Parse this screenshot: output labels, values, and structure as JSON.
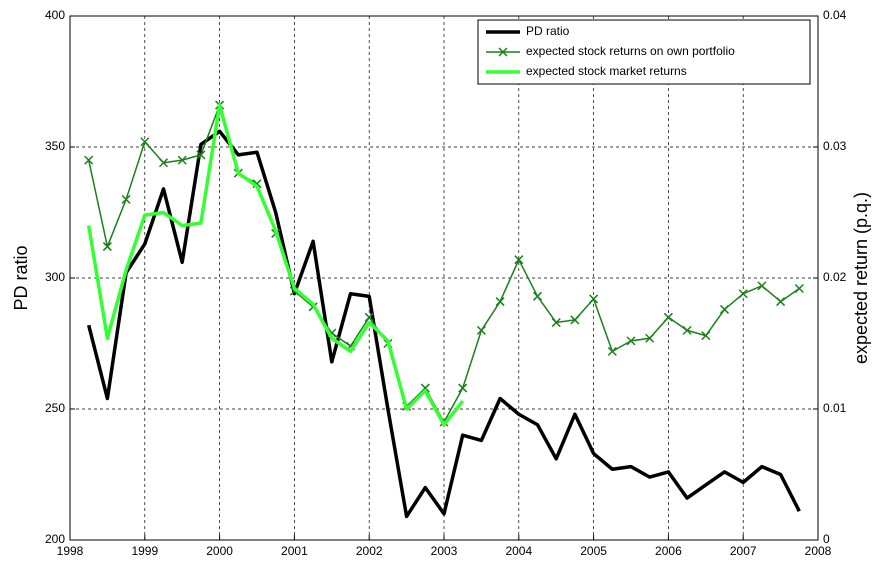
{
  "chart_data": {
    "type": "line",
    "x": [
      1998.25,
      1998.5,
      1998.75,
      1999,
      1999.25,
      1999.5,
      1999.75,
      2000,
      2000.25,
      2000.5,
      2000.75,
      2001,
      2001.25,
      2001.5,
      2001.75,
      2002,
      2002.25,
      2002.5,
      2002.75,
      2003,
      2003.25,
      2003.5,
      2003.75,
      2004,
      2004.25,
      2004.5,
      2004.75,
      2005,
      2005.25,
      2005.5,
      2005.75,
      2006,
      2006.25,
      2006.5,
      2006.75,
      2007,
      2007.25,
      2007.5,
      2007.75
    ],
    "series": [
      {
        "name": "PD ratio",
        "color": "#000000",
        "values": [
          282,
          254,
          302,
          313,
          334,
          306,
          351,
          356,
          347,
          348,
          325,
          294,
          314,
          268,
          294,
          293,
          250,
          209,
          220,
          210,
          240,
          238,
          254,
          248,
          244,
          231,
          248,
          233,
          227,
          228,
          224,
          226,
          216,
          221,
          226,
          222,
          228,
          225,
          211
        ]
      },
      {
        "name": "expected stock returns on own portfolio",
        "color": "#1a801a",
        "axis": "y2",
        "marker": "x",
        "values": [
          0.029,
          0.0224,
          0.026,
          0.0304,
          0.0288,
          0.029,
          0.0294,
          0.0332,
          0.028,
          0.0272,
          0.0234,
          0.019,
          0.0178,
          0.0158,
          0.0148,
          0.017,
          0.015,
          0.0102,
          0.0116,
          0.009,
          0.0116,
          0.016,
          0.0182,
          0.0214,
          0.0186,
          0.0166,
          0.0168,
          0.0184,
          0.0144,
          0.0152,
          0.0154,
          0.017,
          0.016,
          0.0156,
          0.0176,
          0.0188,
          0.0194,
          0.0182,
          0.0192
        ]
      },
      {
        "name": "expected stock market returns",
        "color": "#33ff33",
        "axis": "y2",
        "values": [
          0.024,
          0.0154,
          0.0206,
          0.0248,
          0.025,
          0.024,
          0.0242,
          0.0332,
          0.028,
          0.027,
          0.0236,
          0.0192,
          0.018,
          0.0154,
          0.0144,
          0.0166,
          0.0152,
          0.01,
          0.0114,
          0.0088,
          0.0106,
          null,
          null,
          null,
          null,
          null,
          null,
          null,
          null,
          null,
          null,
          null,
          null,
          null,
          null,
          null,
          null,
          null,
          null
        ]
      }
    ],
    "ylabel": "PD ratio",
    "y2label": "expected return (p.q.)",
    "xlim": [
      1998,
      2008
    ],
    "xticks": [
      1998,
      1999,
      2000,
      2001,
      2002,
      2003,
      2004,
      2005,
      2006,
      2007,
      2008
    ],
    "ylim": [
      200,
      400
    ],
    "yticks": [
      200,
      250,
      300,
      350,
      400
    ],
    "y2lim": [
      0,
      0.04
    ],
    "y2ticks": [
      0,
      0.01,
      0.02,
      0.03,
      0.04
    ],
    "grid": true,
    "legend": "upper right"
  }
}
